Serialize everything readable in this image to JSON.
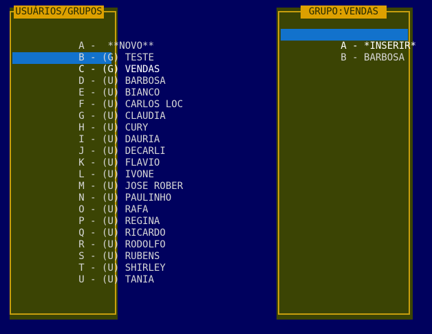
{
  "colors": {
    "background": "#00015e",
    "panel_bg": "#3b4404",
    "panel_border": "#c89e0e",
    "title_bg": "#dda000",
    "title_text": "#262b00",
    "row_text": "#d6d6d6",
    "selected_bg": "#1272cc",
    "selected_text": "#ffffff"
  },
  "left_panel": {
    "title": "USUÁRIOS/GRUPOS",
    "items": [
      {
        "text": "A -  **NOVO**",
        "selected": false
      },
      {
        "text": "B - (G) TESTE",
        "selected": false
      },
      {
        "text": "C - (G) VENDAS",
        "selected": true
      },
      {
        "text": "D - (U) BARBOSA",
        "selected": false
      },
      {
        "text": "E - (U) BIANCO",
        "selected": false
      },
      {
        "text": "F - (U) CARLOS LOC",
        "selected": false
      },
      {
        "text": "G - (U) CLAUDIA",
        "selected": false
      },
      {
        "text": "H - (U) CURY",
        "selected": false
      },
      {
        "text": "I - (U) DAURIA",
        "selected": false
      },
      {
        "text": "J - (U) DECARLI",
        "selected": false
      },
      {
        "text": "K - (U) FLAVIO",
        "selected": false
      },
      {
        "text": "L - (U) IVONE",
        "selected": false
      },
      {
        "text": "M - (U) JOSE ROBER",
        "selected": false
      },
      {
        "text": "N - (U) PAULINHO",
        "selected": false
      },
      {
        "text": "O - (U) RAFA",
        "selected": false
      },
      {
        "text": "P - (U) REGINA",
        "selected": false
      },
      {
        "text": "Q - (U) RICARDO",
        "selected": false
      },
      {
        "text": "R - (U) RODOLFO",
        "selected": false
      },
      {
        "text": "S - (U) RUBENS",
        "selected": false
      },
      {
        "text": "T - (U) SHIRLEY",
        "selected": false
      },
      {
        "text": "U - (U) TANIA",
        "selected": false
      }
    ]
  },
  "right_panel": {
    "title": "GRUPO:VENDAS",
    "items": [
      {
        "text": "A - *INSERIR*",
        "selected": true
      },
      {
        "text": "B - BARBOSA",
        "selected": false
      }
    ]
  }
}
